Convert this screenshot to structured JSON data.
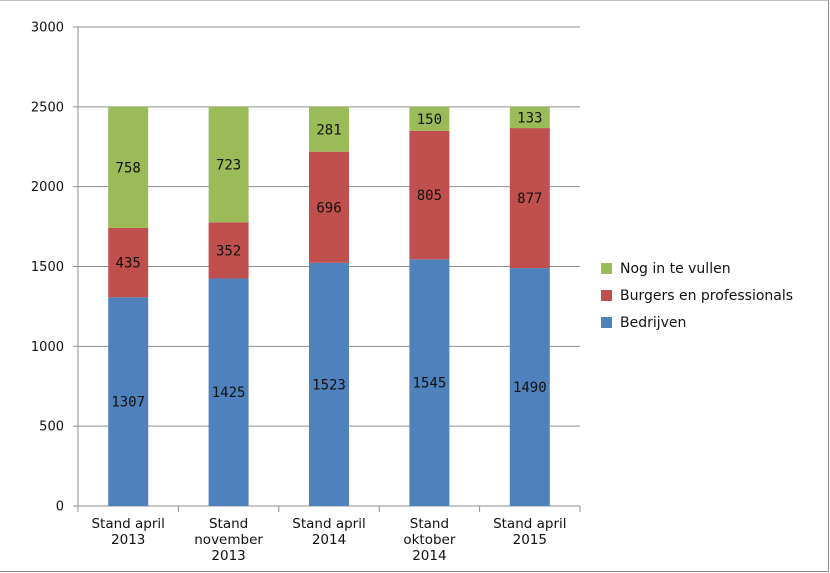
{
  "chart_data": {
    "type": "bar",
    "stacked": true,
    "categories": [
      [
        "Stand april",
        "2013"
      ],
      [
        "Stand",
        "november",
        "2013"
      ],
      [
        "Stand april",
        "2014"
      ],
      [
        "Stand",
        "oktober",
        "2014"
      ],
      [
        "Stand april",
        "2015"
      ]
    ],
    "series": [
      {
        "name": "Bedrijven",
        "color": "#4f81bd",
        "values": [
          1307,
          1425,
          1523,
          1545,
          1490
        ]
      },
      {
        "name": "Burgers en professionals",
        "color": "#c0504d",
        "values": [
          435,
          352,
          696,
          805,
          877
        ]
      },
      {
        "name": "Nog in te vullen",
        "color": "#9bbb59",
        "values": [
          758,
          723,
          281,
          150,
          133
        ]
      }
    ],
    "ylim": [
      0,
      3000
    ],
    "yticks": [
      0,
      500,
      1000,
      1500,
      2000,
      2500,
      3000
    ],
    "grid": true,
    "legend_position": "right",
    "legend_order": [
      "Nog in te vullen",
      "Burgers en professionals",
      "Bedrijven"
    ],
    "data_labels": true,
    "title": "",
    "xlabel": "",
    "ylabel": ""
  }
}
